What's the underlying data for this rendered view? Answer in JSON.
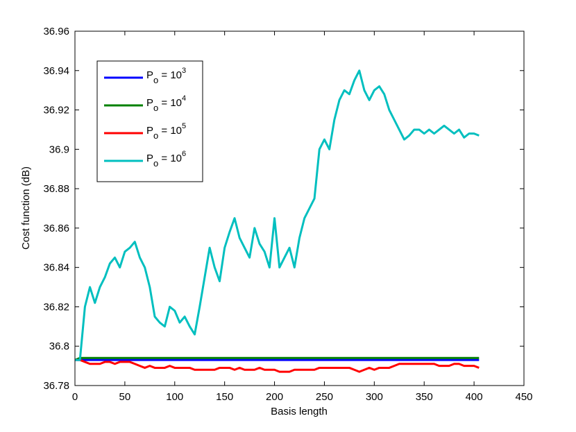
{
  "chart_data": {
    "type": "line",
    "x_label": "Basis length",
    "y_label": "Cost function (dB)",
    "xlim": [
      0,
      450
    ],
    "xticks": [
      0,
      50,
      100,
      150,
      200,
      250,
      300,
      350,
      400,
      450
    ],
    "ylim": [
      36.78,
      36.96
    ],
    "yticks": [
      36.78,
      36.8,
      36.82,
      36.84,
      36.86,
      36.88,
      36.9,
      36.92,
      36.94,
      36.96
    ],
    "grid": false,
    "legend": "upper-left",
    "x": [
      0,
      5,
      10,
      15,
      20,
      25,
      30,
      35,
      40,
      45,
      50,
      55,
      60,
      65,
      70,
      75,
      80,
      85,
      90,
      95,
      100,
      105,
      110,
      115,
      120,
      125,
      130,
      135,
      140,
      145,
      150,
      155,
      160,
      165,
      170,
      175,
      180,
      185,
      190,
      195,
      200,
      205,
      210,
      215,
      220,
      225,
      230,
      235,
      240,
      245,
      250,
      255,
      260,
      265,
      270,
      275,
      280,
      285,
      290,
      295,
      300,
      305,
      310,
      315,
      320,
      325,
      330,
      335,
      340,
      345,
      350,
      355,
      360,
      365,
      370,
      375,
      380,
      385,
      390,
      395,
      400,
      405
    ],
    "series": [
      {
        "name": "Po = 103",
        "color": "#0000ff",
        "values": [
          36.793,
          36.793,
          36.793,
          36.793,
          36.793,
          36.793,
          36.793,
          36.793,
          36.793,
          36.793,
          36.793,
          36.793,
          36.793,
          36.793,
          36.793,
          36.793,
          36.793,
          36.793,
          36.793,
          36.793,
          36.793,
          36.793,
          36.793,
          36.793,
          36.793,
          36.793,
          36.793,
          36.793,
          36.793,
          36.793,
          36.793,
          36.793,
          36.793,
          36.793,
          36.793,
          36.793,
          36.793,
          36.793,
          36.793,
          36.793,
          36.793,
          36.793,
          36.793,
          36.793,
          36.793,
          36.793,
          36.793,
          36.793,
          36.793,
          36.793,
          36.793,
          36.793,
          36.793,
          36.793,
          36.793,
          36.793,
          36.793,
          36.793,
          36.793,
          36.793,
          36.793,
          36.793,
          36.793,
          36.793,
          36.793,
          36.793,
          36.793,
          36.793,
          36.793,
          36.793,
          36.793,
          36.793,
          36.793,
          36.793,
          36.793,
          36.793,
          36.793,
          36.793,
          36.793,
          36.793,
          36.793,
          36.793
        ]
      },
      {
        "name": "Po = 104",
        "color": "#008000",
        "values": [
          36.793,
          36.794,
          36.794,
          36.794,
          36.794,
          36.794,
          36.794,
          36.794,
          36.794,
          36.794,
          36.794,
          36.794,
          36.794,
          36.794,
          36.794,
          36.794,
          36.794,
          36.794,
          36.794,
          36.794,
          36.794,
          36.794,
          36.794,
          36.794,
          36.794,
          36.794,
          36.794,
          36.794,
          36.794,
          36.794,
          36.794,
          36.794,
          36.794,
          36.794,
          36.794,
          36.794,
          36.794,
          36.794,
          36.794,
          36.794,
          36.794,
          36.794,
          36.794,
          36.794,
          36.794,
          36.794,
          36.794,
          36.794,
          36.794,
          36.794,
          36.794,
          36.794,
          36.794,
          36.794,
          36.794,
          36.794,
          36.794,
          36.794,
          36.794,
          36.794,
          36.794,
          36.794,
          36.794,
          36.794,
          36.794,
          36.794,
          36.794,
          36.794,
          36.794,
          36.794,
          36.794,
          36.794,
          36.794,
          36.794,
          36.794,
          36.794,
          36.794,
          36.794,
          36.794,
          36.794,
          36.794,
          36.794
        ]
      },
      {
        "name": "Po = 105",
        "color": "#ff0000",
        "values": [
          36.793,
          36.793,
          36.792,
          36.791,
          36.791,
          36.791,
          36.792,
          36.792,
          36.791,
          36.792,
          36.792,
          36.792,
          36.791,
          36.79,
          36.789,
          36.79,
          36.789,
          36.789,
          36.789,
          36.79,
          36.789,
          36.789,
          36.789,
          36.789,
          36.788,
          36.788,
          36.788,
          36.788,
          36.788,
          36.789,
          36.789,
          36.789,
          36.788,
          36.789,
          36.788,
          36.788,
          36.788,
          36.789,
          36.788,
          36.788,
          36.788,
          36.787,
          36.787,
          36.787,
          36.788,
          36.788,
          36.788,
          36.788,
          36.788,
          36.789,
          36.789,
          36.789,
          36.789,
          36.789,
          36.789,
          36.789,
          36.788,
          36.787,
          36.788,
          36.789,
          36.788,
          36.789,
          36.789,
          36.789,
          36.79,
          36.791,
          36.791,
          36.791,
          36.791,
          36.791,
          36.791,
          36.791,
          36.791,
          36.79,
          36.79,
          36.79,
          36.791,
          36.791,
          36.79,
          36.79,
          36.79,
          36.789
        ]
      },
      {
        "name": "Po = 106",
        "color": "#00bfbf",
        "values": [
          36.793,
          36.793,
          36.82,
          36.83,
          36.822,
          36.83,
          36.835,
          36.842,
          36.845,
          36.84,
          36.848,
          36.85,
          36.853,
          36.845,
          36.84,
          36.83,
          36.815,
          36.812,
          36.81,
          36.82,
          36.818,
          36.812,
          36.815,
          36.81,
          36.806,
          36.82,
          36.835,
          36.85,
          36.84,
          36.833,
          36.85,
          36.858,
          36.865,
          36.855,
          36.85,
          36.845,
          36.86,
          36.852,
          36.848,
          36.84,
          36.865,
          36.84,
          36.845,
          36.85,
          36.84,
          36.855,
          36.865,
          36.87,
          36.875,
          36.9,
          36.905,
          36.9,
          36.915,
          36.925,
          36.93,
          36.928,
          36.935,
          36.94,
          36.93,
          36.925,
          36.93,
          36.932,
          36.928,
          36.92,
          36.915,
          36.91,
          36.905,
          36.907,
          36.91,
          36.91,
          36.908,
          36.91,
          36.908,
          36.91,
          36.912,
          36.91,
          36.908,
          36.91,
          36.906,
          36.908,
          36.908,
          36.907
        ]
      }
    ]
  }
}
